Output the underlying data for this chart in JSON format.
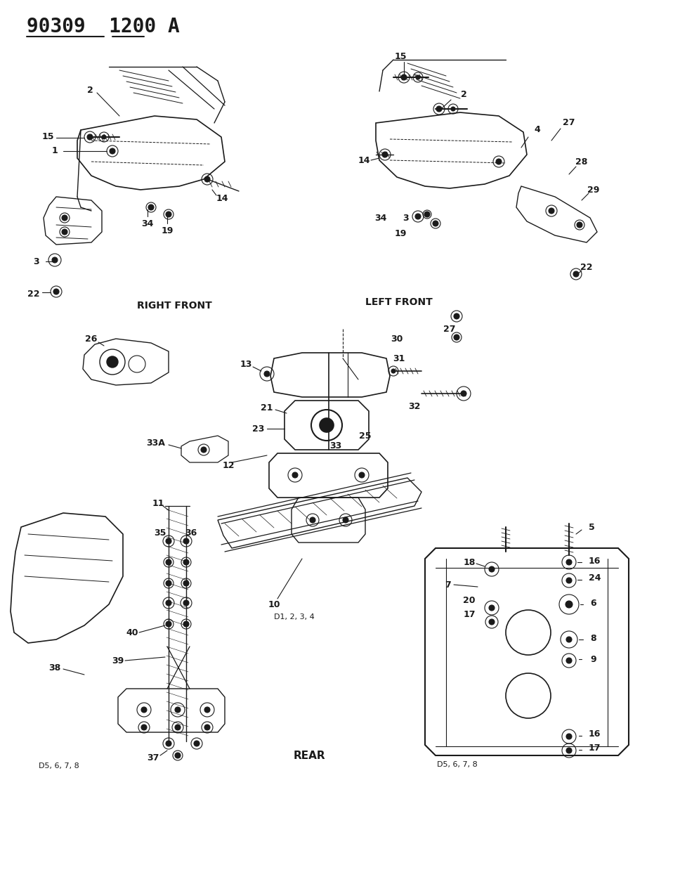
{
  "bg_color": "#ffffff",
  "line_color": "#1a1a1a",
  "title": "90309  1200 A",
  "labels": {
    "right_front": "RIGHT FRONT",
    "left_front": "LEFT FRONT",
    "rear": "REAR",
    "d5678_left": "D5, 6, 7, 8",
    "d5678_right": "D5, 6, 7, 8",
    "d1234": "D1, 2, 3, 4"
  },
  "figsize": [
    9.68,
    12.75
  ],
  "dpi": 100
}
